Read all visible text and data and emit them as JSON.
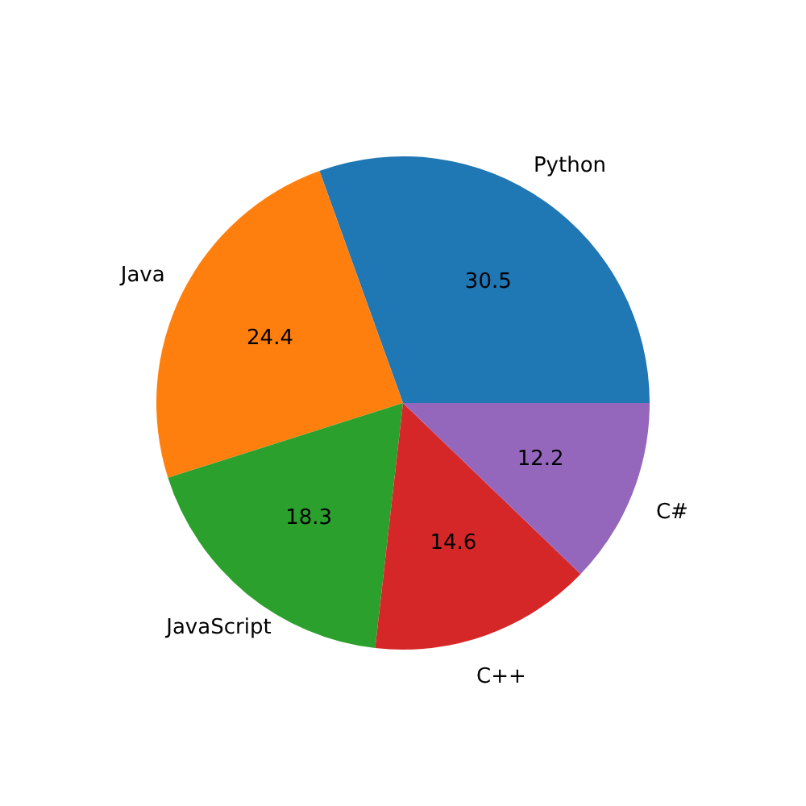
{
  "chart_data": {
    "type": "pie",
    "categories": [
      "Python",
      "Java",
      "JavaScript",
      "C++",
      "C#"
    ],
    "values": [
      30.5,
      24.4,
      18.3,
      14.6,
      12.2
    ],
    "colors": [
      "#1f77b4",
      "#ff7f0e",
      "#2ca02c",
      "#d62728",
      "#9467bd"
    ],
    "data_labels": true
  }
}
